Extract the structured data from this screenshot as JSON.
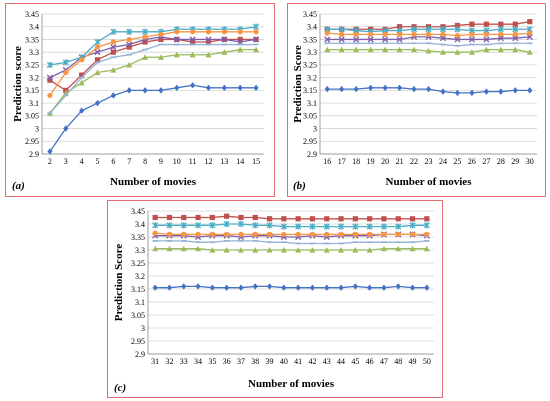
{
  "chart_data": [
    {
      "type": "line",
      "panel_label": "(a)",
      "xlabel": "Number of movies",
      "ylabel": "Prediction score",
      "x": [
        2,
        3,
        4,
        5,
        6,
        7,
        8,
        9,
        10,
        11,
        12,
        13,
        14,
        15
      ],
      "ylim": [
        2.9,
        3.45
      ],
      "yticks": [
        "2.9",
        "2.95",
        "3",
        "3.05",
        "3.1",
        "3.15",
        "3.2",
        "3.25",
        "3.3",
        "3.35",
        "3.4",
        "3.45"
      ],
      "grid": true,
      "legend": "none",
      "series": [
        {
          "color": "#4472C4",
          "marker": "diamond",
          "values": [
            2.91,
            3.0,
            3.07,
            3.1,
            3.13,
            3.15,
            3.15,
            3.15,
            3.16,
            3.17,
            3.16,
            3.16,
            3.16,
            3.16
          ]
        },
        {
          "color": "#C0504D",
          "marker": "square",
          "values": [
            3.19,
            3.15,
            3.21,
            3.27,
            3.3,
            3.32,
            3.34,
            3.35,
            3.35,
            3.34,
            3.34,
            3.35,
            3.35,
            3.35
          ]
        },
        {
          "color": "#9BBB59",
          "marker": "triangle",
          "values": [
            3.06,
            3.14,
            3.18,
            3.22,
            3.23,
            3.25,
            3.28,
            3.28,
            3.29,
            3.29,
            3.29,
            3.3,
            3.31,
            3.31
          ]
        },
        {
          "color": "#7F5FA8",
          "marker": "x",
          "values": [
            3.2,
            3.23,
            3.28,
            3.3,
            3.32,
            3.33,
            3.35,
            3.36,
            3.35,
            3.35,
            3.35,
            3.35,
            3.34,
            3.35
          ]
        },
        {
          "color": "#4BACC6",
          "marker": "star",
          "values": [
            3.25,
            3.26,
            3.28,
            3.34,
            3.38,
            3.38,
            3.38,
            3.38,
            3.39,
            3.39,
            3.39,
            3.39,
            3.39,
            3.4
          ]
        },
        {
          "color": "#F79646",
          "marker": "circle",
          "values": [
            3.13,
            3.22,
            3.27,
            3.32,
            3.34,
            3.35,
            3.36,
            3.37,
            3.38,
            3.38,
            3.38,
            3.38,
            3.38,
            3.38
          ]
        },
        {
          "color": "#95B3D7",
          "marker": "plus",
          "values": [
            3.06,
            3.13,
            3.2,
            3.26,
            3.28,
            3.29,
            3.31,
            3.33,
            3.33,
            3.33,
            3.33,
            3.33,
            3.33,
            3.33
          ]
        }
      ]
    },
    {
      "type": "line",
      "panel_label": "(b)",
      "xlabel": "Number of movies",
      "ylabel": "Prediction Score",
      "x": [
        16,
        17,
        18,
        19,
        20,
        21,
        22,
        23,
        24,
        25,
        26,
        27,
        28,
        29,
        30
      ],
      "ylim": [
        2.9,
        3.45
      ],
      "yticks": [
        "2.9",
        "2.95",
        "3",
        "3.05",
        "3.1",
        "3.15",
        "3.2",
        "3.25",
        "3.3",
        "3.35",
        "3.4",
        "3.45"
      ],
      "grid": true,
      "legend": "none",
      "series": [
        {
          "color": "#4472C4",
          "marker": "diamond",
          "values": [
            3.155,
            3.155,
            3.155,
            3.16,
            3.16,
            3.16,
            3.155,
            3.155,
            3.145,
            3.14,
            3.14,
            3.145,
            3.145,
            3.15,
            3.15
          ]
        },
        {
          "color": "#C0504D",
          "marker": "square",
          "values": [
            3.39,
            3.39,
            3.39,
            3.39,
            3.39,
            3.4,
            3.4,
            3.4,
            3.4,
            3.405,
            3.41,
            3.41,
            3.41,
            3.41,
            3.42
          ]
        },
        {
          "color": "#9BBB59",
          "marker": "triangle",
          "values": [
            3.31,
            3.31,
            3.31,
            3.31,
            3.31,
            3.31,
            3.31,
            3.305,
            3.3,
            3.3,
            3.3,
            3.31,
            3.31,
            3.31,
            3.3
          ]
        },
        {
          "color": "#7F5FA8",
          "marker": "x",
          "values": [
            3.35,
            3.35,
            3.35,
            3.35,
            3.35,
            3.35,
            3.36,
            3.36,
            3.355,
            3.35,
            3.35,
            3.35,
            3.355,
            3.355,
            3.36
          ]
        },
        {
          "color": "#4BACC6",
          "marker": "star",
          "values": [
            3.39,
            3.39,
            3.385,
            3.38,
            3.385,
            3.385,
            3.39,
            3.39,
            3.39,
            3.39,
            3.385,
            3.385,
            3.39,
            3.39,
            3.39
          ]
        },
        {
          "color": "#F79646",
          "marker": "circle",
          "values": [
            3.375,
            3.37,
            3.37,
            3.37,
            3.37,
            3.37,
            3.37,
            3.37,
            3.37,
            3.365,
            3.37,
            3.37,
            3.37,
            3.37,
            3.375
          ]
        },
        {
          "color": "#95B3D7",
          "marker": "plus",
          "values": [
            3.335,
            3.335,
            3.335,
            3.335,
            3.335,
            3.335,
            3.335,
            3.335,
            3.33,
            3.325,
            3.33,
            3.33,
            3.335,
            3.335,
            3.335
          ]
        }
      ]
    },
    {
      "type": "line",
      "panel_label": "(c)",
      "xlabel": "Number of movies",
      "ylabel": "Prediction Score",
      "x": [
        31,
        32,
        33,
        34,
        35,
        36,
        37,
        38,
        39,
        40,
        41,
        42,
        43,
        44,
        45,
        46,
        47,
        48,
        49,
        50
      ],
      "ylim": [
        2.9,
        3.45
      ],
      "yticks": [
        "2.9",
        "2.95",
        "3",
        "3.05",
        "3.1",
        "3.15",
        "3.2",
        "3.25",
        "3.3",
        "3.35",
        "3.4",
        "3.45"
      ],
      "grid": true,
      "legend": "none",
      "series": [
        {
          "color": "#4472C4",
          "marker": "diamond",
          "values": [
            3.155,
            3.155,
            3.16,
            3.16,
            3.155,
            3.155,
            3.155,
            3.16,
            3.16,
            3.155,
            3.155,
            3.155,
            3.155,
            3.155,
            3.16,
            3.155,
            3.155,
            3.16,
            3.155,
            3.155
          ]
        },
        {
          "color": "#C0504D",
          "marker": "square",
          "values": [
            3.425,
            3.425,
            3.425,
            3.425,
            3.425,
            3.43,
            3.425,
            3.425,
            3.42,
            3.42,
            3.42,
            3.42,
            3.42,
            3.42,
            3.42,
            3.42,
            3.42,
            3.42,
            3.42,
            3.42
          ]
        },
        {
          "color": "#9BBB59",
          "marker": "triangle",
          "values": [
            3.305,
            3.305,
            3.305,
            3.305,
            3.3,
            3.3,
            3.3,
            3.3,
            3.3,
            3.3,
            3.3,
            3.3,
            3.3,
            3.3,
            3.3,
            3.3,
            3.305,
            3.305,
            3.305,
            3.305
          ]
        },
        {
          "color": "#7F5FA8",
          "marker": "x",
          "values": [
            3.355,
            3.355,
            3.355,
            3.35,
            3.355,
            3.355,
            3.35,
            3.355,
            3.355,
            3.35,
            3.35,
            3.355,
            3.35,
            3.355,
            3.355,
            3.355,
            3.36,
            3.36,
            3.36,
            3.355
          ]
        },
        {
          "color": "#4BACC6",
          "marker": "star",
          "values": [
            3.395,
            3.395,
            3.395,
            3.395,
            3.395,
            3.4,
            3.4,
            3.395,
            3.395,
            3.39,
            3.39,
            3.39,
            3.39,
            3.39,
            3.39,
            3.39,
            3.39,
            3.39,
            3.395,
            3.395
          ]
        },
        {
          "color": "#F79646",
          "marker": "circle",
          "values": [
            3.365,
            3.36,
            3.36,
            3.36,
            3.36,
            3.36,
            3.36,
            3.36,
            3.36,
            3.36,
            3.36,
            3.36,
            3.36,
            3.36,
            3.36,
            3.36,
            3.36,
            3.36,
            3.36,
            3.36
          ]
        },
        {
          "color": "#95B3D7",
          "marker": "plus",
          "values": [
            3.335,
            3.335,
            3.335,
            3.33,
            3.33,
            3.335,
            3.335,
            3.335,
            3.33,
            3.33,
            3.325,
            3.325,
            3.325,
            3.325,
            3.33,
            3.33,
            3.33,
            3.33,
            3.33,
            3.335
          ]
        }
      ]
    }
  ]
}
